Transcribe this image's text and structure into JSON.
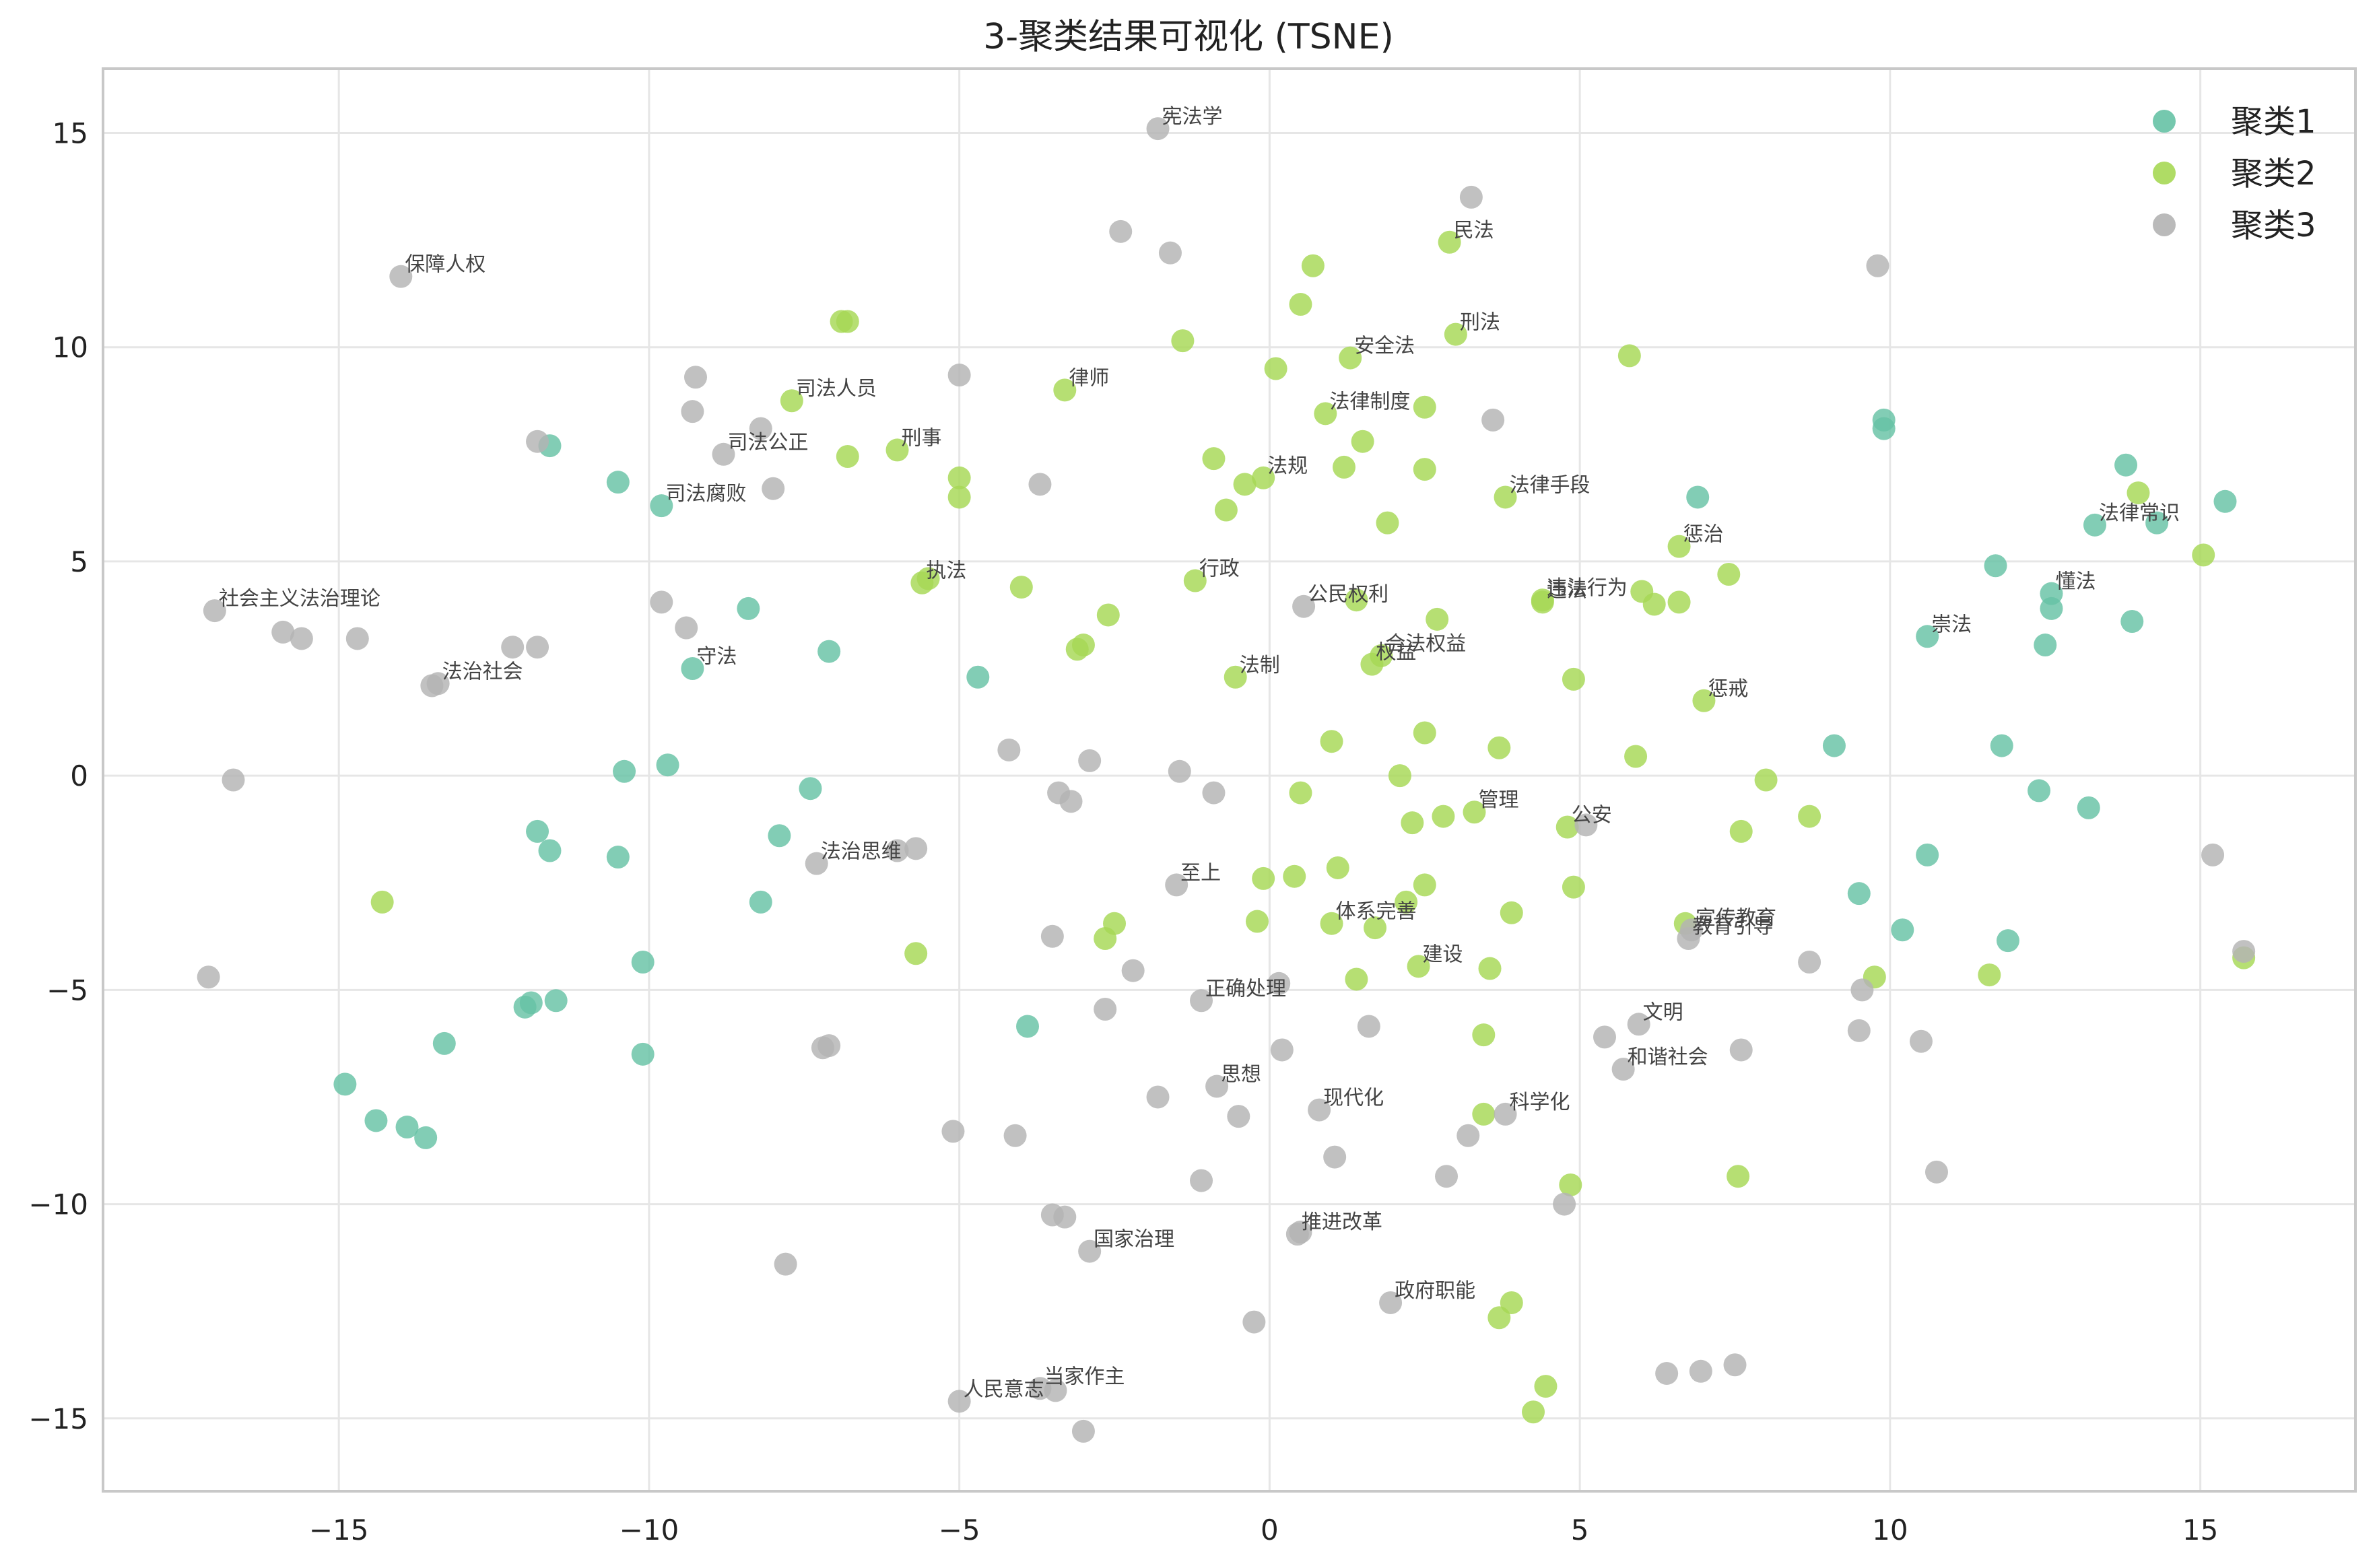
{
  "chart_data": {
    "type": "scatter",
    "title": "3-聚类结果可视化 (TSNE)",
    "xlabel": "",
    "ylabel": "",
    "xlim": [
      -18.8,
      17.5
    ],
    "ylim": [
      -16.7,
      16.5
    ],
    "xticks": [
      -15,
      -10,
      -5,
      0,
      5,
      10,
      15
    ],
    "yticks": [
      15,
      10,
      5,
      0,
      -5,
      -10,
      -15
    ],
    "grid": true,
    "legend_position": "top-right",
    "series": [
      {
        "name": "聚类1",
        "color": "#66c2a5",
        "points": [
          {
            "x": -11.6,
            "y": 7.7
          },
          {
            "x": -10.5,
            "y": 6.85
          },
          {
            "x": -9.8,
            "y": 6.3,
            "label": "司法腐败"
          },
          {
            "x": -8.4,
            "y": 3.9
          },
          {
            "x": -9.3,
            "y": 2.5,
            "label": "守法"
          },
          {
            "x": -7.1,
            "y": 2.9
          },
          {
            "x": -4.7,
            "y": 2.3
          },
          {
            "x": -10.4,
            "y": 0.1
          },
          {
            "x": -9.7,
            "y": 0.25
          },
          {
            "x": -7.4,
            "y": -0.3
          },
          {
            "x": -11.8,
            "y": -1.3
          },
          {
            "x": -11.6,
            "y": -1.75
          },
          {
            "x": -10.5,
            "y": -1.9
          },
          {
            "x": -7.9,
            "y": -1.4
          },
          {
            "x": -8.2,
            "y": -2.95
          },
          {
            "x": -10.1,
            "y": -4.35
          },
          {
            "x": -11.9,
            "y": -5.3
          },
          {
            "x": -12.0,
            "y": -5.4
          },
          {
            "x": -11.5,
            "y": -5.25
          },
          {
            "x": -13.3,
            "y": -6.25
          },
          {
            "x": -10.1,
            "y": -6.5
          },
          {
            "x": -14.9,
            "y": -7.2
          },
          {
            "x": -14.4,
            "y": -8.05
          },
          {
            "x": -13.9,
            "y": -8.2
          },
          {
            "x": -13.6,
            "y": -8.45
          },
          {
            "x": -3.9,
            "y": -5.85
          },
          {
            "x": 6.9,
            "y": 6.5
          },
          {
            "x": 9.9,
            "y": 8.3
          },
          {
            "x": 9.9,
            "y": 8.1
          },
          {
            "x": 13.8,
            "y": 7.25
          },
          {
            "x": 13.3,
            "y": 5.85,
            "label": "法律常识"
          },
          {
            "x": 14.3,
            "y": 5.9
          },
          {
            "x": 15.4,
            "y": 6.4
          },
          {
            "x": 11.7,
            "y": 4.9
          },
          {
            "x": 12.6,
            "y": 4.25,
            "label": "懂法"
          },
          {
            "x": 12.6,
            "y": 3.9
          },
          {
            "x": 13.9,
            "y": 3.6
          },
          {
            "x": 10.6,
            "y": 3.25,
            "label": "崇法"
          },
          {
            "x": 12.5,
            "y": 3.05
          },
          {
            "x": 9.1,
            "y": 0.7
          },
          {
            "x": 11.8,
            "y": 0.7
          },
          {
            "x": 12.4,
            "y": -0.35
          },
          {
            "x": 13.2,
            "y": -0.75
          },
          {
            "x": 10.6,
            "y": -1.85
          },
          {
            "x": 9.5,
            "y": -2.75
          },
          {
            "x": 10.2,
            "y": -3.6
          },
          {
            "x": 11.9,
            "y": -3.85
          }
        ]
      },
      {
        "name": "聚类2",
        "color": "#a6d854",
        "points": [
          {
            "x": 2.9,
            "y": 12.45,
            "label": "民法"
          },
          {
            "x": 0.7,
            "y": 11.9
          },
          {
            "x": 0.5,
            "y": 11.0
          },
          {
            "x": 3.0,
            "y": 10.3,
            "label": "刑法"
          },
          {
            "x": -1.4,
            "y": 10.15
          },
          {
            "x": 1.3,
            "y": 9.75,
            "label": "安全法"
          },
          {
            "x": 0.1,
            "y": 9.5
          },
          {
            "x": 5.8,
            "y": 9.8
          },
          {
            "x": -3.3,
            "y": 9.0,
            "label": "律师"
          },
          {
            "x": -7.7,
            "y": 8.75,
            "label": "司法人员"
          },
          {
            "x": -6.9,
            "y": 10.6
          },
          {
            "x": -6.8,
            "y": 10.6
          },
          {
            "x": 0.9,
            "y": 8.45,
            "label": "法律制度"
          },
          {
            "x": 2.5,
            "y": 8.6
          },
          {
            "x": 1.5,
            "y": 7.8
          },
          {
            "x": -6.8,
            "y": 7.45
          },
          {
            "x": -6.0,
            "y": 7.6,
            "label": "刑事"
          },
          {
            "x": -5.0,
            "y": 6.95
          },
          {
            "x": -5.0,
            "y": 6.5
          },
          {
            "x": -0.9,
            "y": 7.4
          },
          {
            "x": -0.4,
            "y": 6.8
          },
          {
            "x": -0.1,
            "y": 6.95,
            "label": "法规"
          },
          {
            "x": -0.7,
            "y": 6.2
          },
          {
            "x": 1.2,
            "y": 7.2
          },
          {
            "x": 2.5,
            "y": 7.15
          },
          {
            "x": 3.8,
            "y": 6.5,
            "label": "法律手段"
          },
          {
            "x": 1.9,
            "y": 5.9
          },
          {
            "x": 6.6,
            "y": 5.35,
            "label": "惩治"
          },
          {
            "x": 7.4,
            "y": 4.7
          },
          {
            "x": -5.6,
            "y": 4.5,
            "label": "执法"
          },
          {
            "x": -5.5,
            "y": 4.6
          },
          {
            "x": -4.0,
            "y": 4.4
          },
          {
            "x": -1.2,
            "y": 4.55,
            "label": "行政"
          },
          {
            "x": 1.4,
            "y": 4.1
          },
          {
            "x": 4.4,
            "y": 4.05,
            "label": "违法"
          },
          {
            "x": 4.4,
            "y": 4.1,
            "label": "违法行为"
          },
          {
            "x": 6.0,
            "y": 4.3
          },
          {
            "x": 6.2,
            "y": 4.0
          },
          {
            "x": 6.6,
            "y": 4.05
          },
          {
            "x": -2.6,
            "y": 3.75
          },
          {
            "x": 2.7,
            "y": 3.65
          },
          {
            "x": -3.0,
            "y": 3.05
          },
          {
            "x": -3.1,
            "y": 2.95
          },
          {
            "x": 1.8,
            "y": 2.8,
            "label": "合法权益"
          },
          {
            "x": 1.65,
            "y": 2.6,
            "label": "权益"
          },
          {
            "x": -0.55,
            "y": 2.3,
            "label": "法制"
          },
          {
            "x": 4.9,
            "y": 2.25
          },
          {
            "x": 7.0,
            "y": 1.75,
            "label": "惩戒"
          },
          {
            "x": 1.0,
            "y": 0.8
          },
          {
            "x": 2.5,
            "y": 1.0
          },
          {
            "x": 3.7,
            "y": 0.65
          },
          {
            "x": 5.9,
            "y": 0.45
          },
          {
            "x": 2.1,
            "y": 0.0
          },
          {
            "x": 0.5,
            "y": -0.4
          },
          {
            "x": 8.0,
            "y": -0.1
          },
          {
            "x": 2.3,
            "y": -1.1
          },
          {
            "x": 2.8,
            "y": -0.95
          },
          {
            "x": 3.3,
            "y": -0.85,
            "label": "管理"
          },
          {
            "x": 4.8,
            "y": -1.2,
            "label": "公安"
          },
          {
            "x": 7.6,
            "y": -1.3
          },
          {
            "x": 8.7,
            "y": -0.95
          },
          {
            "x": 0.4,
            "y": -2.35
          },
          {
            "x": -0.1,
            "y": -2.4
          },
          {
            "x": 1.1,
            "y": -2.15
          },
          {
            "x": 2.5,
            "y": -2.55
          },
          {
            "x": 4.9,
            "y": -2.6
          },
          {
            "x": 2.2,
            "y": -2.95
          },
          {
            "x": 1.0,
            "y": -3.45,
            "label": "体系完善"
          },
          {
            "x": 1.7,
            "y": -3.55
          },
          {
            "x": -0.2,
            "y": -3.4
          },
          {
            "x": -2.5,
            "y": -3.45
          },
          {
            "x": -2.65,
            "y": -3.8
          },
          {
            "x": 3.9,
            "y": -3.2
          },
          {
            "x": 6.7,
            "y": -3.45
          },
          {
            "x": 2.4,
            "y": -4.45,
            "label": "建设"
          },
          {
            "x": 3.55,
            "y": -4.5
          },
          {
            "x": 1.4,
            "y": -4.75
          },
          {
            "x": -5.7,
            "y": -4.15
          },
          {
            "x": 9.75,
            "y": -4.7
          },
          {
            "x": 11.6,
            "y": -4.65
          },
          {
            "x": 15.7,
            "y": -4.25
          },
          {
            "x": 3.45,
            "y": -6.05
          },
          {
            "x": 3.45,
            "y": -7.9
          },
          {
            "x": 4.85,
            "y": -9.55
          },
          {
            "x": 7.55,
            "y": -9.35
          },
          {
            "x": 3.9,
            "y": -12.3
          },
          {
            "x": 3.7,
            "y": -12.65
          },
          {
            "x": 4.45,
            "y": -14.25
          },
          {
            "x": 4.25,
            "y": -14.85
          },
          {
            "x": -14.3,
            "y": -2.95
          },
          {
            "x": 14.0,
            "y": 6.6
          },
          {
            "x": 15.05,
            "y": 5.15
          }
        ]
      },
      {
        "name": "聚类3",
        "color": "#b3b3b3",
        "points": [
          {
            "x": -1.8,
            "y": 15.1,
            "label": "宪法学"
          },
          {
            "x": 3.25,
            "y": 13.5
          },
          {
            "x": -2.4,
            "y": 12.7
          },
          {
            "x": -1.6,
            "y": 12.2
          },
          {
            "x": 9.8,
            "y": 11.9
          },
          {
            "x": -14.0,
            "y": 11.65,
            "label": "保障人权"
          },
          {
            "x": -9.25,
            "y": 9.3
          },
          {
            "x": -5.0,
            "y": 9.35
          },
          {
            "x": -9.3,
            "y": 8.5
          },
          {
            "x": -8.2,
            "y": 8.1
          },
          {
            "x": 3.6,
            "y": 8.3
          },
          {
            "x": -11.8,
            "y": 7.8
          },
          {
            "x": -8.8,
            "y": 7.5,
            "label": "司法公正"
          },
          {
            "x": -8.0,
            "y": 6.7
          },
          {
            "x": -3.7,
            "y": 6.8
          },
          {
            "x": -17.0,
            "y": 3.85,
            "label": "社会主义法治理论"
          },
          {
            "x": -15.9,
            "y": 3.35
          },
          {
            "x": -15.6,
            "y": 3.2
          },
          {
            "x": -14.7,
            "y": 3.2
          },
          {
            "x": -12.2,
            "y": 3.0
          },
          {
            "x": -11.8,
            "y": 3.0
          },
          {
            "x": -9.8,
            "y": 4.05
          },
          {
            "x": -9.4,
            "y": 3.45
          },
          {
            "x": -13.4,
            "y": 2.15,
            "label": "法治社会"
          },
          {
            "x": -13.5,
            "y": 2.1
          },
          {
            "x": 0.55,
            "y": 3.95,
            "label": "公民权利"
          },
          {
            "x": -16.7,
            "y": -0.1
          },
          {
            "x": -4.2,
            "y": 0.6
          },
          {
            "x": -2.9,
            "y": 0.35
          },
          {
            "x": -1.45,
            "y": 0.1
          },
          {
            "x": -0.9,
            "y": -0.4
          },
          {
            "x": -3.4,
            "y": -0.4
          },
          {
            "x": -3.2,
            "y": -0.6
          },
          {
            "x": 5.1,
            "y": -1.15
          },
          {
            "x": -6.0,
            "y": -1.75
          },
          {
            "x": -5.7,
            "y": -1.7
          },
          {
            "x": -7.3,
            "y": -2.05,
            "label": "法治思维"
          },
          {
            "x": -1.5,
            "y": -2.55,
            "label": "至上"
          },
          {
            "x": -3.5,
            "y": -3.75
          },
          {
            "x": 6.75,
            "y": -3.8,
            "label": "教育引导"
          },
          {
            "x": 6.8,
            "y": -3.6,
            "label": "宣传教育"
          },
          {
            "x": 8.7,
            "y": -4.35
          },
          {
            "x": 9.55,
            "y": -5.0
          },
          {
            "x": 15.2,
            "y": -1.85
          },
          {
            "x": 15.7,
            "y": -4.1
          },
          {
            "x": -17.1,
            "y": -4.7
          },
          {
            "x": -2.2,
            "y": -4.55
          },
          {
            "x": 0.15,
            "y": -4.85
          },
          {
            "x": -1.1,
            "y": -5.25,
            "label": "正确处理"
          },
          {
            "x": -2.65,
            "y": -5.45
          },
          {
            "x": 1.6,
            "y": -5.85
          },
          {
            "x": 5.95,
            "y": -5.8,
            "label": "文明"
          },
          {
            "x": 5.4,
            "y": -6.1
          },
          {
            "x": 0.2,
            "y": -6.4
          },
          {
            "x": 7.6,
            "y": -6.4
          },
          {
            "x": 9.5,
            "y": -5.95
          },
          {
            "x": 10.5,
            "y": -6.2
          },
          {
            "x": -7.1,
            "y": -6.3
          },
          {
            "x": -7.2,
            "y": -6.35
          },
          {
            "x": 5.7,
            "y": -6.85,
            "label": "和谐社会"
          },
          {
            "x": -0.85,
            "y": -7.25,
            "label": "思想"
          },
          {
            "x": -1.8,
            "y": -7.5
          },
          {
            "x": 0.8,
            "y": -7.8,
            "label": "现代化"
          },
          {
            "x": 3.8,
            "y": -7.9,
            "label": "科学化"
          },
          {
            "x": -0.5,
            "y": -7.95
          },
          {
            "x": 3.2,
            "y": -8.4
          },
          {
            "x": -5.1,
            "y": -8.3
          },
          {
            "x": -4.1,
            "y": -8.4
          },
          {
            "x": 1.05,
            "y": -8.9
          },
          {
            "x": -1.1,
            "y": -9.45
          },
          {
            "x": 2.85,
            "y": -9.35
          },
          {
            "x": 10.75,
            "y": -9.25
          },
          {
            "x": 4.75,
            "y": -10.0
          },
          {
            "x": -3.5,
            "y": -10.25
          },
          {
            "x": -3.3,
            "y": -10.3
          },
          {
            "x": 0.45,
            "y": -10.7,
            "label": "推进改革"
          },
          {
            "x": 0.5,
            "y": -10.65
          },
          {
            "x": -2.9,
            "y": -11.1,
            "label": "国家治理"
          },
          {
            "x": -7.8,
            "y": -11.4
          },
          {
            "x": 1.95,
            "y": -12.3,
            "label": "政府职能"
          },
          {
            "x": -0.25,
            "y": -12.75
          },
          {
            "x": 6.4,
            "y": -13.95
          },
          {
            "x": 6.95,
            "y": -13.9
          },
          {
            "x": 7.5,
            "y": -13.75
          },
          {
            "x": -3.7,
            "y": -14.3,
            "label": "当家作主"
          },
          {
            "x": -3.45,
            "y": -14.35
          },
          {
            "x": -5.0,
            "y": -14.6,
            "label": "人民意志"
          },
          {
            "x": -3.0,
            "y": -15.3
          }
        ]
      }
    ]
  }
}
